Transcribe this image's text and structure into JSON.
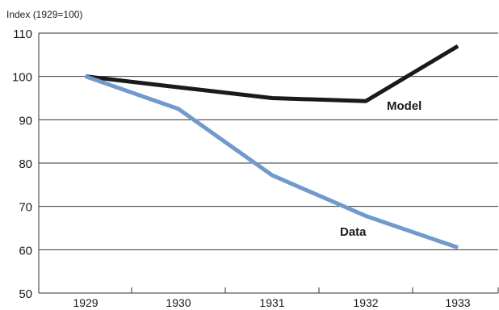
{
  "chart_data": {
    "type": "line",
    "title": "",
    "ylabel": "Index (1929=100)",
    "xlabel": "",
    "x": [
      "1929",
      "1930",
      "1931",
      "1932",
      "1933"
    ],
    "ylim": [
      50,
      110
    ],
    "yticks": [
      "50",
      "60",
      "70",
      "80",
      "90",
      "100",
      "110"
    ],
    "grid": true,
    "series": [
      {
        "name": "Model",
        "values": [
          100,
          97.5,
          95,
          94.3,
          107
        ],
        "color": "#1a1a1a"
      },
      {
        "name": "Data",
        "values": [
          100,
          92.5,
          77.2,
          67.8,
          60.5
        ],
        "color": "#6f9acb"
      }
    ]
  }
}
